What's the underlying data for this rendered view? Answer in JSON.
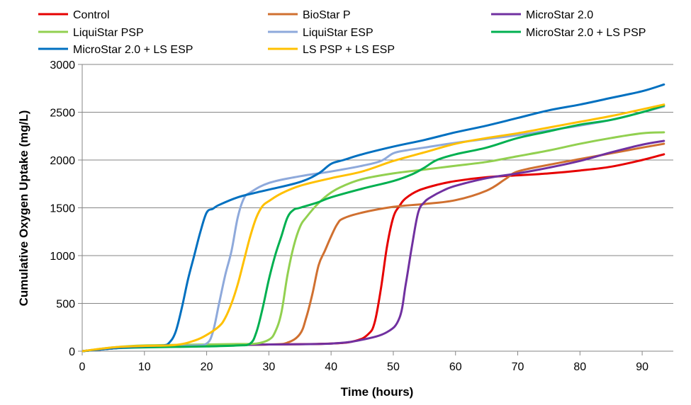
{
  "chart_data": {
    "type": "line",
    "title": "",
    "xlabel": "Time (hours)",
    "ylabel": "Cumulative Oxygen Uptake (mg/L)",
    "xlim": [
      0,
      95
    ],
    "ylim": [
      0,
      3000
    ],
    "xticks": [
      0,
      10,
      20,
      30,
      40,
      50,
      60,
      70,
      80,
      90
    ],
    "yticks": [
      0,
      500,
      1000,
      1500,
      2000,
      2500,
      3000
    ],
    "grid": "horizontal",
    "legend_position": "top",
    "series": [
      {
        "name": "Control",
        "color": "#E60000",
        "x": [
          0,
          5,
          10,
          20,
          30,
          40,
          44,
          46,
          47,
          48,
          49,
          50,
          51,
          52,
          54,
          57,
          60,
          65,
          70,
          75,
          80,
          85,
          90,
          93.5
        ],
        "y": [
          0,
          30,
          50,
          60,
          70,
          80,
          110,
          180,
          300,
          650,
          1100,
          1400,
          1520,
          1600,
          1680,
          1740,
          1780,
          1820,
          1840,
          1860,
          1890,
          1930,
          2000,
          2060
        ]
      },
      {
        "name": "BioStar P",
        "color": "#D07030",
        "x": [
          0,
          5,
          10,
          20,
          30,
          33,
          35,
          36,
          37,
          38,
          39,
          40,
          41,
          42,
          45,
          50,
          55,
          60,
          65,
          68,
          70,
          75,
          80,
          85,
          90,
          93.5
        ],
        "y": [
          0,
          30,
          50,
          60,
          70,
          90,
          180,
          350,
          600,
          900,
          1050,
          1200,
          1330,
          1390,
          1450,
          1510,
          1540,
          1580,
          1680,
          1800,
          1880,
          1950,
          2010,
          2070,
          2130,
          2170
        ]
      },
      {
        "name": "MicroStar 2.0",
        "color": "#7030A0",
        "x": [
          0,
          5,
          10,
          20,
          30,
          40,
          45,
          49,
          51,
          52,
          53,
          54,
          55,
          56,
          58,
          60,
          65,
          70,
          75,
          80,
          85,
          90,
          93.5
        ],
        "y": [
          0,
          30,
          50,
          60,
          70,
          80,
          120,
          200,
          350,
          700,
          1100,
          1450,
          1560,
          1610,
          1680,
          1730,
          1810,
          1860,
          1920,
          1990,
          2080,
          2160,
          2200
        ]
      },
      {
        "name": "LiquiStar PSP",
        "color": "#92D050",
        "x": [
          0,
          5,
          10,
          20,
          25,
          28,
          30,
          31,
          32,
          33,
          34,
          35,
          36,
          38,
          40,
          42,
          45,
          50,
          55,
          60,
          65,
          70,
          75,
          80,
          85,
          90,
          93.5
        ],
        "y": [
          0,
          40,
          60,
          70,
          75,
          80,
          120,
          200,
          400,
          800,
          1100,
          1300,
          1400,
          1550,
          1660,
          1730,
          1800,
          1860,
          1900,
          1940,
          1980,
          2040,
          2100,
          2170,
          2230,
          2280,
          2290
        ]
      },
      {
        "name": "LiquiStar ESP",
        "color": "#8EA9DB",
        "x": [
          0,
          5,
          10,
          15,
          18,
          20,
          21,
          22,
          23,
          24,
          25,
          26,
          27,
          30,
          35,
          40,
          45,
          48,
          50,
          52,
          55,
          60,
          65,
          70,
          75,
          80,
          85,
          90,
          93.5
        ],
        "y": [
          0,
          30,
          50,
          55,
          60,
          80,
          200,
          500,
          800,
          1050,
          1400,
          1600,
          1660,
          1760,
          1830,
          1880,
          1940,
          1990,
          2070,
          2100,
          2130,
          2180,
          2220,
          2260,
          2310,
          2360,
          2420,
          2500,
          2560
        ]
      },
      {
        "name": "MicroStar 2.0 + LS PSP",
        "color": "#00B050",
        "x": [
          0,
          5,
          10,
          20,
          25,
          27,
          28,
          29,
          30,
          31,
          32,
          33,
          34,
          35,
          38,
          40,
          45,
          50,
          53,
          55,
          57,
          60,
          65,
          70,
          75,
          80,
          85,
          90,
          93.5
        ],
        "y": [
          0,
          30,
          40,
          50,
          60,
          80,
          200,
          450,
          750,
          1000,
          1200,
          1400,
          1480,
          1500,
          1560,
          1610,
          1700,
          1780,
          1850,
          1920,
          2000,
          2060,
          2130,
          2230,
          2300,
          2370,
          2420,
          2500,
          2570
        ]
      },
      {
        "name": "MicroStar 2.0 + LS ESP",
        "color": "#0070C0",
        "x": [
          0,
          5,
          10,
          13,
          14,
          15,
          16,
          17,
          18,
          19,
          20,
          21,
          22,
          25,
          28,
          30,
          35,
          38,
          40,
          42,
          45,
          50,
          55,
          60,
          65,
          70,
          75,
          80,
          85,
          90,
          93.5
        ],
        "y": [
          0,
          30,
          50,
          60,
          90,
          200,
          450,
          750,
          1000,
          1250,
          1450,
          1490,
          1530,
          1610,
          1660,
          1690,
          1770,
          1860,
          1960,
          2000,
          2060,
          2140,
          2210,
          2290,
          2360,
          2440,
          2520,
          2580,
          2650,
          2720,
          2790
        ]
      },
      {
        "name": "LS PSP + LS ESP",
        "color": "#FFC000",
        "x": [
          0,
          5,
          10,
          15,
          18,
          20,
          22,
          23,
          24,
          25,
          26,
          27,
          28,
          29,
          30,
          32,
          35,
          40,
          45,
          50,
          55,
          60,
          65,
          70,
          75,
          80,
          85,
          90,
          93.5
        ],
        "y": [
          0,
          40,
          55,
          65,
          110,
          170,
          260,
          350,
          500,
          700,
          950,
          1200,
          1400,
          1520,
          1570,
          1650,
          1730,
          1810,
          1880,
          1990,
          2080,
          2170,
          2230,
          2280,
          2340,
          2400,
          2460,
          2530,
          2580
        ]
      }
    ]
  }
}
